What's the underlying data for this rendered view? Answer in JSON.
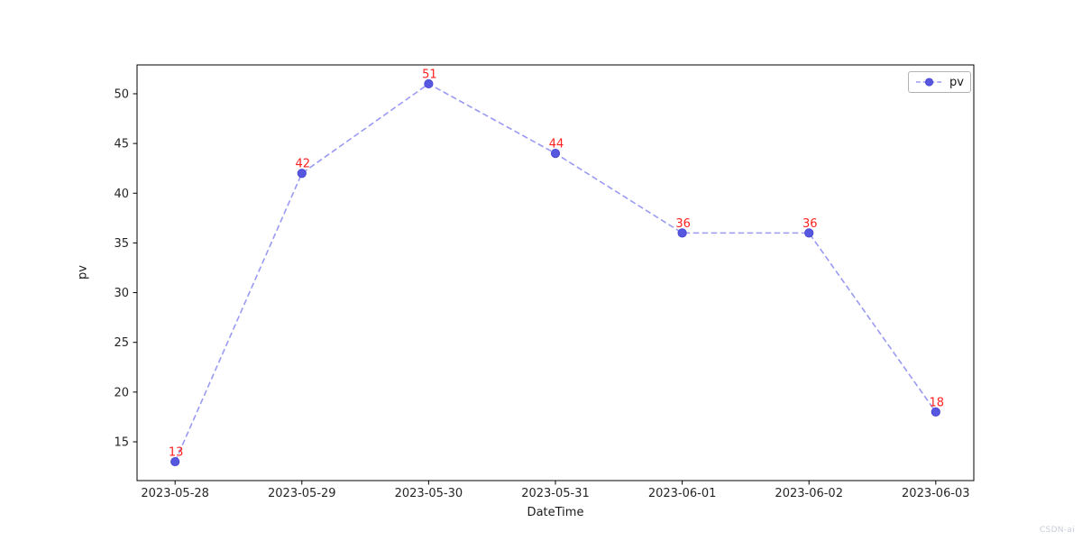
{
  "figure": {
    "background": "#ffffff",
    "watermark": "CSDN-ai"
  },
  "chart_data": {
    "type": "line",
    "title": "",
    "xlabel": "DateTime",
    "ylabel": "pv",
    "categories": [
      "2023-05-28",
      "2023-05-29",
      "2023-05-30",
      "2023-05-31",
      "2023-06-01",
      "2023-06-02",
      "2023-06-03"
    ],
    "series": [
      {
        "name": "pv",
        "values": [
          13,
          42,
          51,
          44,
          36,
          36,
          18
        ],
        "point_labels": [
          "13",
          "42",
          "51",
          "44",
          "36",
          "36",
          "18"
        ],
        "line_style": "dashed",
        "line_color": "#9a9af2",
        "marker": "circle",
        "marker_color": "#5757e0",
        "marker_edge_color": "#4848d6",
        "point_label_color": "#ff2020"
      }
    ],
    "yticks": [
      15,
      20,
      25,
      30,
      35,
      40,
      45,
      50
    ],
    "ylim": [
      11.1,
      52.9
    ],
    "x_margin": 0.3,
    "grid": false,
    "legend": {
      "position": "upper right",
      "entries": [
        "pv"
      ]
    },
    "axis_color": "#000000",
    "tick_label_color": "#262626"
  }
}
